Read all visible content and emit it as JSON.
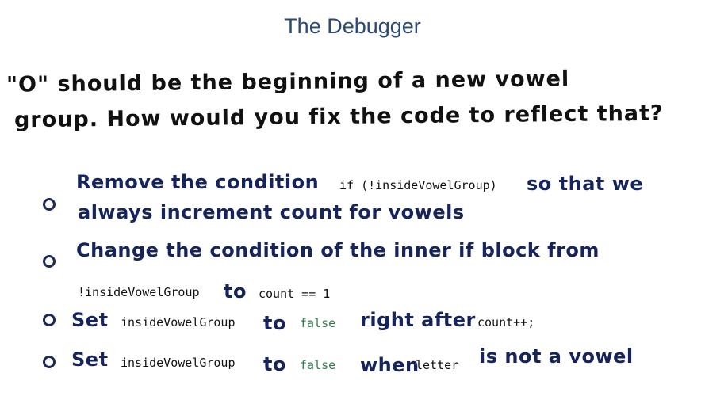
{
  "title": "The Debugger",
  "question": [
    "\"O\"  should be the beginning of a new vowel",
    "group. How would you fix the code to reflect that?"
  ],
  "options": [
    [
      [
        "Remove the condition",
        "if (!insideVowelGroup)",
        "so that we"
      ],
      [
        "always increment count for vowels"
      ]
    ],
    [
      [
        "Change the condition of the inner if block from"
      ],
      [
        "!insideVowelGroup",
        "to",
        "count == 1"
      ]
    ],
    [
      [
        "Set",
        "insideVowelGroup",
        "to",
        "false",
        "right after",
        "count++;"
      ]
    ],
    [
      [
        "Set",
        "insideVowelGroup",
        "to",
        "false",
        "when",
        "letter",
        "is not a vowel"
      ]
    ]
  ]
}
